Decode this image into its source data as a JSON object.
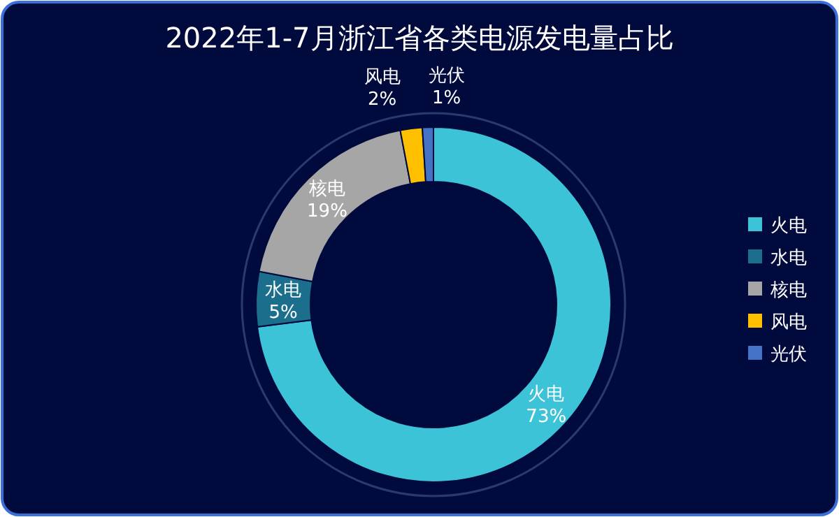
{
  "chart_data": {
    "type": "donut",
    "title": "2022年1-7月浙江省各类电源发电量占比",
    "categories": [
      "火电",
      "水电",
      "核电",
      "风电",
      "光伏"
    ],
    "values": [
      73,
      5,
      19,
      2,
      1
    ],
    "value_labels": [
      "73%",
      "5%",
      "19%",
      "2%",
      "1%"
    ],
    "colors": [
      "#3cc3d8",
      "#1b6f8c",
      "#a6a6a6",
      "#ffc000",
      "#4472c4"
    ],
    "legend": "right"
  }
}
